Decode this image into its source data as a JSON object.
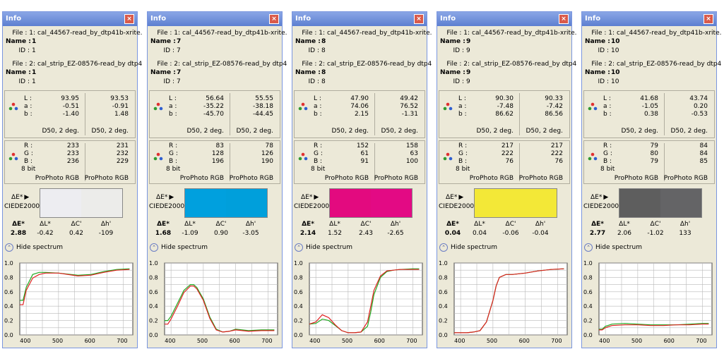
{
  "panels": [
    {
      "title": "Info",
      "file1_label": "File : 1:",
      "file1_value": "cal_44567-read_by_dtp41b-xrite.",
      "name1": "1",
      "id1": "1",
      "file2_label": "File : 2:",
      "file2_value": "cal_strip_EZ-08576-read_by dtp4",
      "name2": "1",
      "id2": "1",
      "lab1": [
        "93.95",
        "-0.51",
        "-1.40"
      ],
      "lab2": [
        "93.53",
        "-0.91",
        "1.48"
      ],
      "illum": "D50, 2 deg.",
      "rgb1": [
        "233",
        "233",
        "236"
      ],
      "rgb2": [
        "231",
        "232",
        "229"
      ],
      "bit": "8 bit",
      "space": "ProPhoto RGB",
      "de_label": "ΔE*",
      "ciede": "CIEDE2000",
      "color1": "#ededf1",
      "color2": "#ececea",
      "dE": "2.88",
      "dL": "-0.42",
      "dC": "0.42",
      "dh": "-109",
      "hide": "Hide spectrum",
      "chart_data": {
        "type": "line",
        "x_ticks": [
          "400",
          "500",
          "600",
          "700"
        ],
        "y_ticks": [
          "0.0",
          "0.2",
          "0.4",
          "0.6",
          "0.8",
          "1.0"
        ],
        "xlim": [
          380,
          730
        ],
        "ylim": [
          0,
          1.0
        ],
        "series": [
          {
            "color": "#22aa22",
            "x": [
              380,
              390,
              400,
              420,
              440,
              460,
              500,
              560,
              600,
              640,
              680,
              720
            ],
            "y": [
              0.48,
              0.48,
              0.66,
              0.84,
              0.87,
              0.87,
              0.86,
              0.83,
              0.84,
              0.88,
              0.91,
              0.92
            ]
          },
          {
            "color": "#e02020",
            "x": [
              380,
              390,
              400,
              420,
              440,
              460,
              500,
              560,
              600,
              640,
              680,
              720
            ],
            "y": [
              0.42,
              0.42,
              0.62,
              0.79,
              0.84,
              0.86,
              0.86,
              0.82,
              0.83,
              0.87,
              0.9,
              0.91
            ]
          }
        ]
      }
    },
    {
      "title": "Info",
      "file1_label": "File : 1:",
      "file1_value": "cal_44567-read_by_dtp41b-xrite.",
      "name1": "7",
      "id1": "7",
      "file2_label": "File : 2:",
      "file2_value": "cal_strip_EZ-08576-read_by dtp4",
      "name2": "7",
      "id2": "7",
      "lab1": [
        "56.64",
        "-35.22",
        "-45.70"
      ],
      "lab2": [
        "55.55",
        "-38.18",
        "-44.45"
      ],
      "illum": "D50, 2 deg.",
      "rgb1": [
        "83",
        "128",
        "196"
      ],
      "rgb2": [
        "78",
        "126",
        "190"
      ],
      "bit": "8 bit",
      "space": "ProPhoto RGB",
      "de_label": "ΔE*",
      "ciede": "CIEDE2000",
      "color1": "#00a0de",
      "color2": "#009fdb",
      "dE": "1.68",
      "dL": "-1.09",
      "dC": "0.90",
      "dh": "-3.05",
      "hide": "Hide spectrum",
      "chart_data": {
        "type": "line",
        "x_ticks": [
          "400",
          "500",
          "600",
          "700"
        ],
        "y_ticks": [
          "0.0",
          "0.2",
          "0.4",
          "0.6",
          "0.8",
          "1.0"
        ],
        "xlim": [
          380,
          730
        ],
        "ylim": [
          0,
          1.0
        ],
        "series": [
          {
            "color": "#22aa22",
            "x": [
              380,
              390,
              400,
              420,
              440,
              460,
              470,
              480,
              500,
              520,
              540,
              560,
              580,
              600,
              640,
              680,
              720
            ],
            "y": [
              0.2,
              0.2,
              0.26,
              0.44,
              0.62,
              0.7,
              0.7,
              0.66,
              0.5,
              0.25,
              0.08,
              0.04,
              0.05,
              0.08,
              0.06,
              0.07,
              0.07
            ]
          },
          {
            "color": "#e02020",
            "x": [
              380,
              390,
              400,
              420,
              440,
              460,
              470,
              480,
              500,
              520,
              540,
              560,
              580,
              600,
              640,
              680,
              720
            ],
            "y": [
              0.15,
              0.15,
              0.22,
              0.4,
              0.59,
              0.68,
              0.68,
              0.64,
              0.48,
              0.23,
              0.07,
              0.04,
              0.05,
              0.07,
              0.05,
              0.06,
              0.06
            ]
          }
        ]
      }
    },
    {
      "title": "Info",
      "file1_label": "File : 1:",
      "file1_value": "cal_44567-read_by_dtp41b-xrite.",
      "name1": "8",
      "id1": "8",
      "file2_label": "File : 2:",
      "file2_value": "cal_strip_EZ-08576-read_by dtp4",
      "name2": "8",
      "id2": "8",
      "lab1": [
        "47.90",
        "74.06",
        "2.15"
      ],
      "lab2": [
        "49.42",
        "76.52",
        "-1.31"
      ],
      "illum": "D50, 2 deg.",
      "rgb1": [
        "152",
        "61",
        "91"
      ],
      "rgb2": [
        "158",
        "63",
        "100"
      ],
      "bit": "8 bit",
      "space": "ProPhoto RGB",
      "de_label": "ΔE*",
      "ciede": "CIEDE2000",
      "color1": "#e30a7f",
      "color2": "#e30a84",
      "dE": "2.14",
      "dL": "1.52",
      "dC": "2.43",
      "dh": "-2.65",
      "hide": "Hide spectrum",
      "chart_data": {
        "type": "line",
        "x_ticks": [
          "400",
          "500",
          "600",
          "700"
        ],
        "y_ticks": [
          "0.0",
          "0.2",
          "0.4",
          "0.6",
          "0.8",
          "1.0"
        ],
        "xlim": [
          380,
          730
        ],
        "ylim": [
          0,
          1.0
        ],
        "series": [
          {
            "color": "#22aa22",
            "x": [
              380,
              400,
              420,
              440,
              460,
              480,
              500,
              520,
              540,
              560,
              570,
              580,
              600,
              620,
              640,
              660,
              700,
              720
            ],
            "y": [
              0.15,
              0.16,
              0.22,
              0.2,
              0.13,
              0.06,
              0.03,
              0.03,
              0.04,
              0.12,
              0.32,
              0.56,
              0.8,
              0.88,
              0.9,
              0.91,
              0.92,
              0.92
            ]
          },
          {
            "color": "#e02020",
            "x": [
              380,
              400,
              420,
              440,
              460,
              480,
              500,
              520,
              540,
              560,
              570,
              580,
              600,
              620,
              640,
              660,
              700,
              720
            ],
            "y": [
              0.15,
              0.18,
              0.28,
              0.24,
              0.14,
              0.06,
              0.03,
              0.03,
              0.04,
              0.18,
              0.4,
              0.62,
              0.82,
              0.89,
              0.9,
              0.91,
              0.91,
              0.91
            ]
          }
        ]
      }
    },
    {
      "title": "Info",
      "file1_label": "File : 1:",
      "file1_value": "cal_44567-read_by_dtp41b-xrite.",
      "name1": "9",
      "id1": "9",
      "file2_label": "File : 2:",
      "file2_value": "cal_strip_EZ-08576-read_by dtp4",
      "name2": "9",
      "id2": "9",
      "lab1": [
        "90.30",
        "-7.48",
        "86.62"
      ],
      "lab2": [
        "90.33",
        "-7.42",
        "86.56"
      ],
      "illum": "D50, 2 deg.",
      "rgb1": [
        "217",
        "222",
        "76"
      ],
      "rgb2": [
        "217",
        "222",
        "76"
      ],
      "bit": "8 bit",
      "space": "ProPhoto RGB",
      "de_label": "ΔE*",
      "ciede": "CIEDE2000",
      "color1": "#f3e837",
      "color2": "#f3e837",
      "dE": "0.04",
      "dL": "0.04",
      "dC": "-0.06",
      "dh": "-0.04",
      "hide": "Hide spectrum",
      "chart_data": {
        "type": "line",
        "x_ticks": [
          "400",
          "500",
          "600",
          "700"
        ],
        "y_ticks": [
          "0.0",
          "0.2",
          "0.4",
          "0.6",
          "0.8",
          "1.0"
        ],
        "xlim": [
          380,
          730
        ],
        "ylim": [
          0,
          1.0
        ],
        "series": [
          {
            "color": "#22aa22",
            "x": [
              380,
              400,
              420,
              440,
              460,
              480,
              500,
              510,
              520,
              540,
              560,
              600,
              640,
              680,
              720
            ],
            "y": [
              0.03,
              0.03,
              0.03,
              0.04,
              0.06,
              0.18,
              0.48,
              0.68,
              0.8,
              0.84,
              0.84,
              0.86,
              0.89,
              0.91,
              0.92
            ]
          },
          {
            "color": "#e02020",
            "x": [
              380,
              400,
              420,
              440,
              460,
              480,
              500,
              510,
              520,
              540,
              560,
              600,
              640,
              680,
              720
            ],
            "y": [
              0.03,
              0.03,
              0.03,
              0.04,
              0.06,
              0.18,
              0.48,
              0.68,
              0.8,
              0.84,
              0.84,
              0.86,
              0.89,
              0.91,
              0.92
            ]
          }
        ]
      }
    },
    {
      "title": "Info",
      "file1_label": "File : 1:",
      "file1_value": "cal_44567-read_by_dtp41b-xrite.",
      "name1": "10",
      "id1": "10",
      "file2_label": "File : 2:",
      "file2_value": "cal_strip_EZ-08576-read_by dtp4",
      "name2": "10",
      "id2": "10",
      "lab1": [
        "41.68",
        "-1.05",
        "0.38"
      ],
      "lab2": [
        "43.74",
        "0.20",
        "-0.53"
      ],
      "illum": "D50, 2 deg.",
      "rgb1": [
        "79",
        "80",
        "79"
      ],
      "rgb2": [
        "84",
        "84",
        "85"
      ],
      "bit": "8 bit",
      "space": "ProPhoto RGB",
      "de_label": "ΔE*",
      "ciede": "CIEDE2000",
      "color1": "#5e5e5e",
      "color2": "#646466",
      "dE": "2.77",
      "dL": "2.06",
      "dC": "-1.02",
      "dh": "133",
      "hide": "Hide spectrum",
      "chart_data": {
        "type": "line",
        "x_ticks": [
          "400",
          "500",
          "600",
          "700"
        ],
        "y_ticks": [
          "0.0",
          "0.2",
          "0.4",
          "0.6",
          "0.8",
          "1.0"
        ],
        "xlim": [
          380,
          730
        ],
        "ylim": [
          0,
          1.0
        ],
        "series": [
          {
            "color": "#22aa22",
            "x": [
              380,
              390,
              400,
              420,
              460,
              500,
              540,
              580,
              620,
              660,
              700,
              720
            ],
            "y": [
              0.08,
              0.08,
              0.12,
              0.15,
              0.16,
              0.15,
              0.14,
              0.14,
              0.14,
              0.15,
              0.16,
              0.16
            ]
          },
          {
            "color": "#e02020",
            "x": [
              380,
              390,
              400,
              420,
              460,
              500,
              540,
              580,
              620,
              660,
              700,
              720
            ],
            "y": [
              0.07,
              0.07,
              0.1,
              0.13,
              0.14,
              0.14,
              0.13,
              0.13,
              0.14,
              0.14,
              0.15,
              0.15
            ]
          }
        ]
      }
    }
  ]
}
